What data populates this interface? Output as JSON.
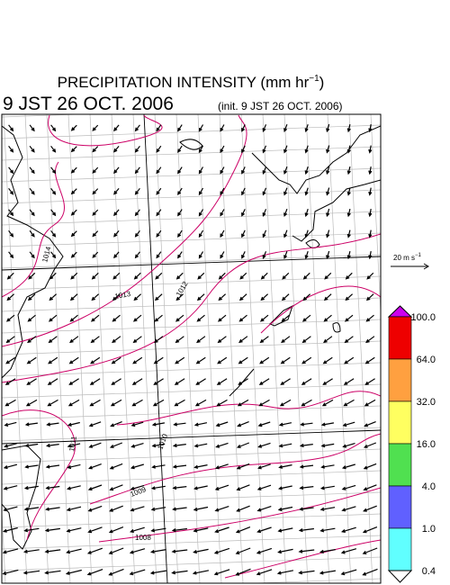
{
  "header": {
    "title": "PRECIPITATION INTENSITY (mm hr",
    "title_sup": "−1",
    "title_end": ")",
    "valid_time": "9 JST 26 OCT. 2006",
    "init_time": "(init. 9 JST 26 OCT. 2006)"
  },
  "wind_reference": {
    "label": "20 m s",
    "label_sup": "−1"
  },
  "colorbar": {
    "labels": [
      "100.0",
      "64.0",
      "32.0",
      "16.0",
      "4.0",
      "1.0",
      "0.4"
    ],
    "colors": [
      "#cc00ee",
      "#ee0000",
      "#ffa040",
      "#ffff60",
      "#50e050",
      "#6060ff",
      "#60ffff",
      "#ffffff"
    ]
  },
  "isobars": [
    "1014",
    "1013",
    "1012",
    "1011",
    "1010",
    "1009",
    "1008"
  ]
}
